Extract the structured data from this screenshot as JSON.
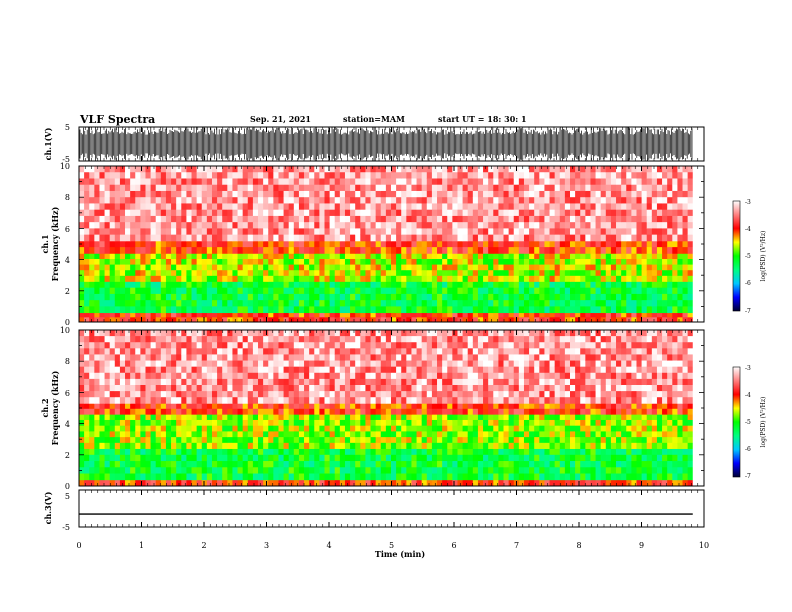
{
  "header": {
    "title": "VLF Spectra",
    "date": "Sep. 21, 2021",
    "station": "station=MAM",
    "start_ut": "start UT =  18: 30: 1"
  },
  "chart_data": [
    {
      "type": "line",
      "id": "ch1-waveform",
      "ylabel": "ch.1(V)",
      "ylim": [
        -5,
        5
      ],
      "yticks": [
        "5",
        "-5"
      ],
      "xlim": [
        0,
        10
      ],
      "description_of_trace": "dense noise bursts spanning full range"
    },
    {
      "type": "heatmap",
      "id": "ch1-spectrogram",
      "ylabel": "ch.1\nFrequency (kHz)",
      "ylabel_line1": "ch.1",
      "ylabel_line2": "Frequency (kHz)",
      "ylim": [
        0,
        10
      ],
      "yticks": [
        "0",
        "2",
        "4",
        "6",
        "8",
        "10"
      ],
      "xlim": [
        0,
        10
      ],
      "data_extent_min": 9.82,
      "colorbar": {
        "label": "log(PSD) (V²/Hz)",
        "range": [
          -7,
          -3
        ],
        "ticks": [
          "-3",
          "-4",
          "-5",
          "-6",
          "-7"
        ]
      },
      "bands": [
        {
          "fmin": 0.0,
          "fmax": 0.6,
          "logpsd": -4.0
        },
        {
          "fmin": 0.6,
          "fmax": 2.6,
          "logpsd": -5.2
        },
        {
          "fmin": 2.6,
          "fmax": 4.4,
          "logpsd": -4.6
        },
        {
          "fmin": 4.4,
          "fmax": 5.2,
          "logpsd": -4.0
        },
        {
          "fmin": 5.2,
          "fmax": 10.0,
          "logpsd": -3.4
        }
      ]
    },
    {
      "type": "heatmap",
      "id": "ch2-spectrogram",
      "ylabel_line1": "ch.2",
      "ylabel_line2": "Frequency (kHz)",
      "ylim": [
        0,
        10
      ],
      "yticks": [
        "0",
        "2",
        "4",
        "6",
        "8",
        "10"
      ],
      "xlim": [
        0,
        10
      ],
      "data_extent_min": 9.82,
      "colorbar": {
        "label": "log(PSD) (V²/Hz)",
        "range": [
          -7,
          -3
        ],
        "ticks": [
          "-3",
          "-4",
          "-5",
          "-6",
          "-7"
        ]
      },
      "bands": [
        {
          "fmin": 0.0,
          "fmax": 0.4,
          "logpsd": -4.0
        },
        {
          "fmin": 0.4,
          "fmax": 2.4,
          "logpsd": -5.2
        },
        {
          "fmin": 2.4,
          "fmax": 4.6,
          "logpsd": -4.7
        },
        {
          "fmin": 4.6,
          "fmax": 5.3,
          "logpsd": -4.0
        },
        {
          "fmin": 5.3,
          "fmax": 10.0,
          "logpsd": -3.4
        }
      ]
    },
    {
      "type": "line",
      "id": "ch3-waveform",
      "ylabel": "ch.3(V)",
      "ylim": [
        -5,
        5
      ],
      "yticks": [
        "5",
        "-5"
      ],
      "xlim": [
        0,
        10
      ],
      "x": [
        0,
        9.82
      ],
      "y": [
        -1.5,
        -1.5
      ]
    }
  ],
  "x_axis": {
    "label": "Time  (min)",
    "ticks": [
      "0",
      "1",
      "2",
      "3",
      "4",
      "5",
      "6",
      "7",
      "8",
      "9",
      "10"
    ]
  },
  "colorscale": [
    {
      "v": -7,
      "color": "#000033"
    },
    {
      "v": -6.5,
      "color": "#0000ff"
    },
    {
      "v": -6.0,
      "color": "#00c8ff"
    },
    {
      "v": -5.5,
      "color": "#00ff80"
    },
    {
      "v": -5.0,
      "color": "#00ff00"
    },
    {
      "v": -4.5,
      "color": "#ffff00"
    },
    {
      "v": -4.0,
      "color": "#ff0000"
    },
    {
      "v": -3.5,
      "color": "#ff8080"
    },
    {
      "v": -3.0,
      "color": "#ffffff"
    }
  ]
}
